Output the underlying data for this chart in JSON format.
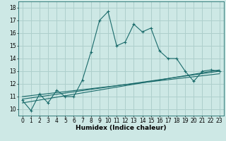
{
  "xlabel": "Humidex (Indice chaleur)",
  "ylabel": "",
  "bg_color": "#cde8e5",
  "grid_color": "#aecfcc",
  "line_color": "#1a6b6b",
  "xlim": [
    -0.5,
    23.5
  ],
  "ylim": [
    9.5,
    18.5
  ],
  "xticks": [
    0,
    1,
    2,
    3,
    4,
    5,
    6,
    7,
    8,
    9,
    10,
    11,
    12,
    13,
    14,
    15,
    16,
    17,
    18,
    19,
    20,
    21,
    22,
    23
  ],
  "yticks": [
    10,
    11,
    12,
    13,
    14,
    15,
    16,
    17,
    18
  ],
  "series1_x": [
    0,
    1,
    2,
    3,
    4,
    5,
    6,
    7,
    8,
    9,
    10,
    11,
    12,
    13,
    14,
    15,
    16,
    17,
    18,
    19,
    20,
    21,
    22,
    23
  ],
  "series1_y": [
    10.7,
    9.9,
    11.2,
    10.5,
    11.5,
    11.0,
    11.0,
    12.3,
    14.5,
    17.0,
    17.7,
    15.0,
    15.3,
    16.7,
    16.1,
    16.4,
    14.6,
    14.0,
    14.0,
    13.0,
    12.2,
    13.0,
    13.1,
    13.0
  ],
  "series2_x": [
    0,
    23
  ],
  "series2_y": [
    10.5,
    13.1
  ],
  "series3_x": [
    0,
    23
  ],
  "series3_y": [
    10.8,
    13.0
  ],
  "series4_x": [
    0,
    23
  ],
  "series4_y": [
    11.0,
    12.8
  ],
  "tick_fontsize": 5.5,
  "xlabel_fontsize": 6.5
}
